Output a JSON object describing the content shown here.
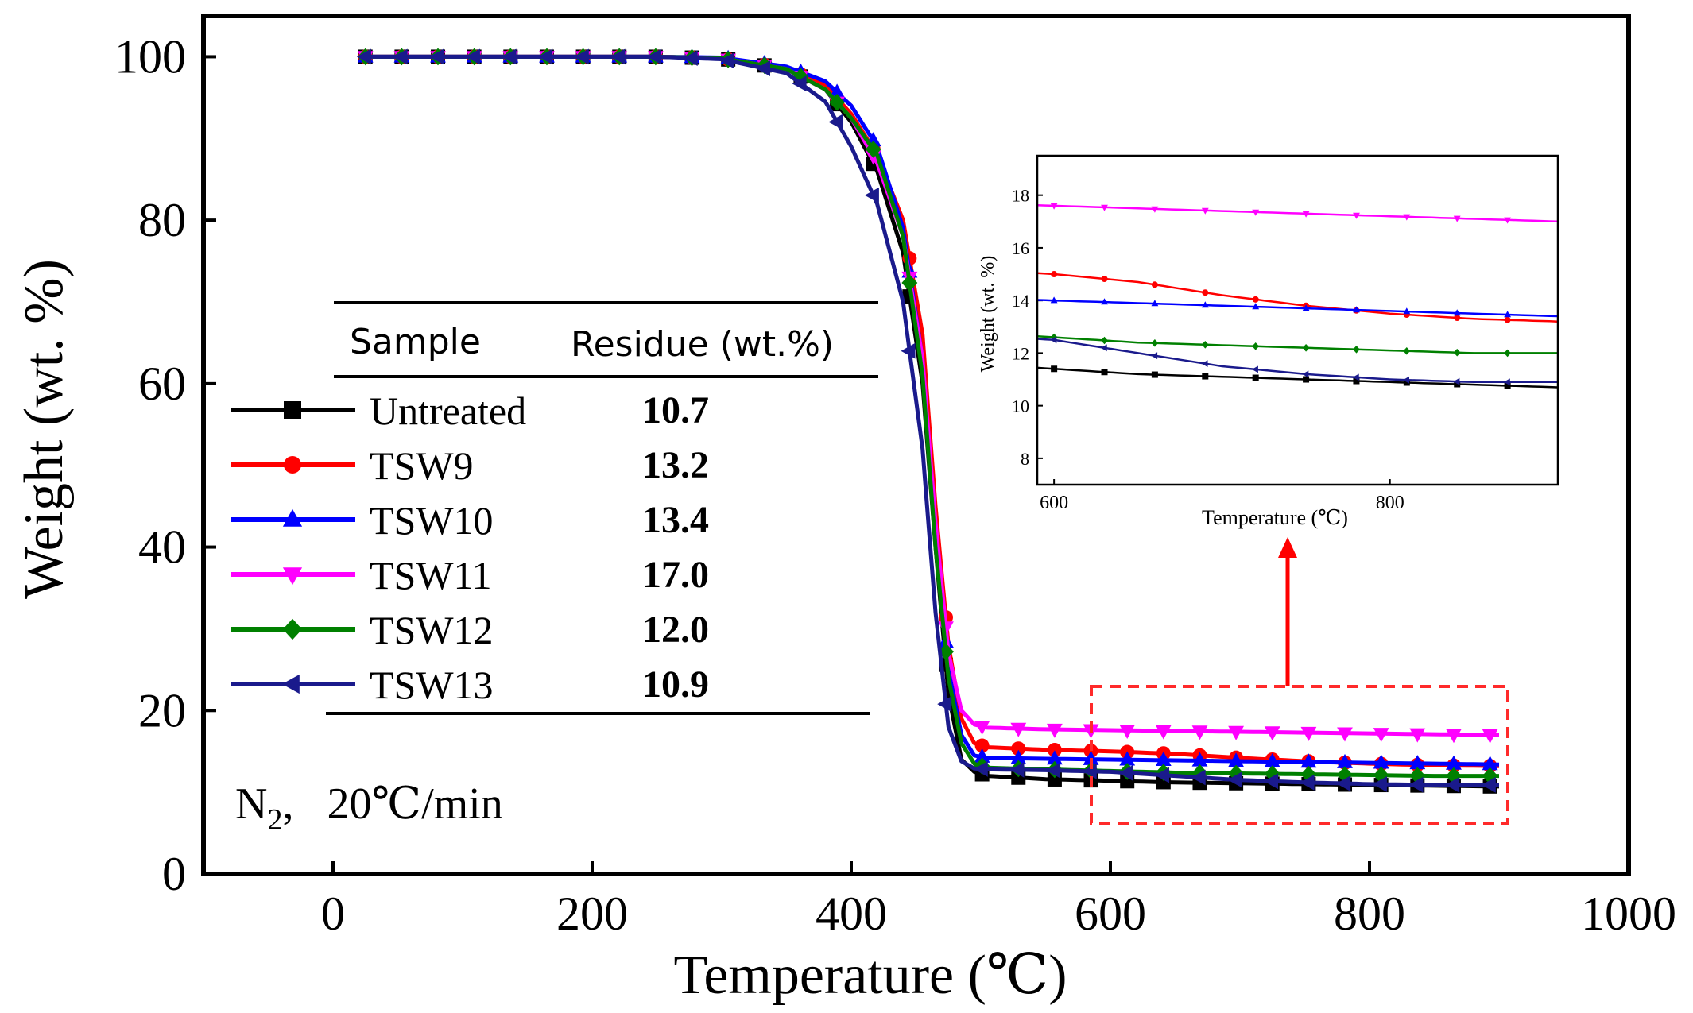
{
  "chart_data": {
    "type": "line",
    "title": "",
    "xlabel": "Temperature (℃)",
    "ylabel": "Weight (wt. %)",
    "xlim": [
      -100,
      1000
    ],
    "ylim": [
      0,
      105
    ],
    "xticks": [
      0,
      200,
      400,
      600,
      800,
      1000
    ],
    "yticks": [
      0,
      20,
      40,
      60,
      80,
      100
    ],
    "condition": {
      "prefix": "N",
      "sub": "2",
      "suffix": ",  20℃/min"
    },
    "table": {
      "header_sample": "Sample",
      "header_residue": "Residue (wt.%)"
    },
    "series": [
      {
        "name": "Untreated",
        "residue": "10.7",
        "color": "#000000",
        "marker": "square",
        "x": [
          25,
          50,
          100,
          150,
          200,
          250,
          300,
          350,
          380,
          400,
          420,
          440,
          455,
          465,
          475,
          485,
          495,
          505,
          550,
          600,
          650,
          700,
          750,
          800,
          850,
          900
        ],
        "y": [
          100,
          100,
          100,
          100,
          100,
          100,
          99.8,
          98.5,
          96,
          92,
          86,
          76,
          60,
          40,
          22,
          14,
          12.5,
          12,
          11.6,
          11.4,
          11.2,
          11.1,
          11.0,
          10.9,
          10.8,
          10.7
        ]
      },
      {
        "name": "TSW9",
        "residue": "13.2",
        "color": "#ff0000",
        "marker": "circle",
        "x": [
          25,
          50,
          100,
          150,
          200,
          250,
          300,
          350,
          380,
          400,
          420,
          440,
          455,
          465,
          475,
          485,
          495,
          505,
          550,
          600,
          650,
          700,
          750,
          800,
          850,
          900
        ],
        "y": [
          100,
          100,
          100,
          100,
          100,
          100,
          99.8,
          98.6,
          96.5,
          93,
          88,
          80,
          66,
          45,
          28,
          19,
          16,
          15.5,
          15.2,
          15.0,
          14.7,
          14.2,
          13.8,
          13.5,
          13.3,
          13.2
        ]
      },
      {
        "name": "TSW10",
        "residue": "13.4",
        "color": "#0000ff",
        "marker": "triangle-up",
        "x": [
          25,
          50,
          100,
          150,
          200,
          250,
          300,
          350,
          380,
          400,
          420,
          440,
          455,
          465,
          475,
          485,
          495,
          505,
          550,
          600,
          650,
          700,
          750,
          800,
          850,
          900
        ],
        "y": [
          100,
          100,
          100,
          100,
          100,
          100,
          99.9,
          98.8,
          97,
          94,
          89,
          79,
          63,
          42,
          25,
          17,
          14.5,
          14.2,
          14.1,
          14.0,
          13.9,
          13.8,
          13.7,
          13.6,
          13.5,
          13.4
        ]
      },
      {
        "name": "TSW11",
        "residue": "17.0",
        "color": "#ff00ff",
        "marker": "triangle-down",
        "x": [
          25,
          50,
          100,
          150,
          200,
          250,
          300,
          350,
          380,
          400,
          420,
          440,
          455,
          465,
          475,
          485,
          495,
          505,
          550,
          600,
          650,
          700,
          750,
          800,
          850,
          900
        ],
        "y": [
          100,
          100,
          100,
          100,
          100,
          100,
          99.8,
          98.5,
          96,
          92.5,
          87,
          78,
          63,
          43,
          27,
          20,
          18.3,
          17.9,
          17.7,
          17.6,
          17.5,
          17.4,
          17.3,
          17.2,
          17.1,
          17.0
        ]
      },
      {
        "name": "TSW12",
        "residue": "12.0",
        "color": "#008000",
        "marker": "diamond",
        "x": [
          25,
          50,
          100,
          150,
          200,
          250,
          300,
          350,
          380,
          400,
          420,
          440,
          455,
          465,
          475,
          485,
          495,
          505,
          550,
          600,
          650,
          700,
          750,
          800,
          850,
          900
        ],
        "y": [
          100,
          100,
          100,
          100,
          100,
          100,
          99.8,
          98.5,
          96,
          92.5,
          88,
          78,
          61,
          40,
          24,
          16,
          13.5,
          13,
          12.8,
          12.6,
          12.4,
          12.3,
          12.2,
          12.1,
          12.0,
          12.0
        ]
      },
      {
        "name": "TSW13",
        "residue": "10.9",
        "color": "#1a1a8c",
        "marker": "triangle-left",
        "x": [
          25,
          50,
          100,
          150,
          200,
          250,
          300,
          350,
          380,
          400,
          420,
          440,
          455,
          465,
          475,
          485,
          495,
          505,
          550,
          600,
          650,
          700,
          750,
          800,
          850,
          900
        ],
        "y": [
          100,
          100,
          100,
          100,
          100,
          100,
          99.7,
          98,
          94.5,
          89,
          82,
          70,
          52,
          32,
          18,
          13.8,
          12.9,
          12.8,
          12.7,
          12.5,
          12.0,
          11.5,
          11.2,
          11.0,
          10.9,
          10.9
        ]
      }
    ],
    "inset": {
      "xlabel": "Temperature (℃)",
      "ylabel": "Weight (wt. %)",
      "xlim": [
        590,
        900
      ],
      "ylim": [
        7,
        19.5
      ],
      "xticks": [
        600,
        800
      ],
      "yticks": [
        8,
        10,
        12,
        14,
        16,
        18
      ]
    }
  }
}
